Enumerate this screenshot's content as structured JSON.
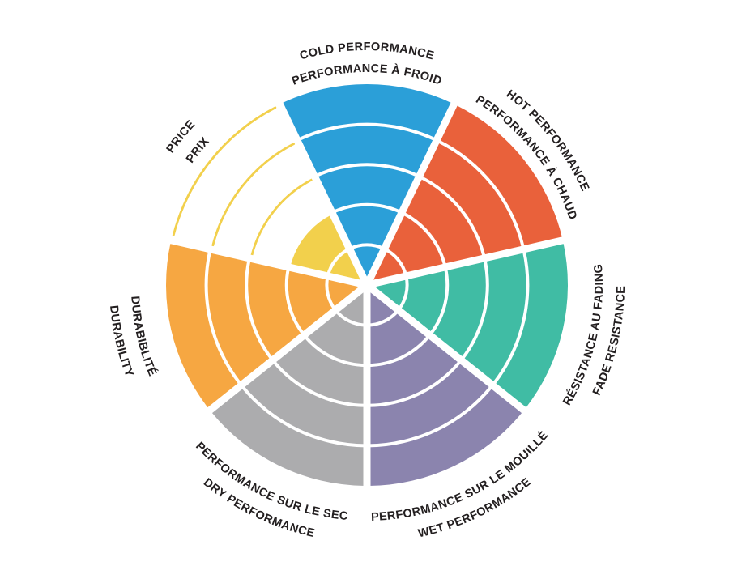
{
  "figure": {
    "background": "#FFFFFF",
    "label_text_color": "#231F20",
    "divider_color": "#FFFFFF"
  },
  "chart_data": {
    "type": "polar-sector-ratings",
    "description": "Circular tire performance rating wheel; 7 wedge sectors, each divided into 5 concentric rings; filled rings indicate rating out of 5; unfilled rings of the Price sector shown as thin outline arcs",
    "max_value": 5,
    "rings_total": 5,
    "legend_position": "none",
    "grid": "white ring gaps and white radial dividers",
    "sectors": [
      {
        "id": "cold",
        "label_en": "COLD PERFORMANCE",
        "label_fr": "PERFORMANCE À FROID",
        "value": 5,
        "color": "#2B9FD8",
        "label_style": "outside-top"
      },
      {
        "id": "hot",
        "label_en": "HOT PERFORMANCE",
        "label_fr": "PERFORMANCE À CHAUD",
        "value": 5,
        "color": "#E9613B",
        "label_style": "outside-top"
      },
      {
        "id": "fade",
        "label_en": "FADE RESISTANCE",
        "label_fr": "RÉSISTANCE AU FADING",
        "value": 5,
        "color": "#40BCA4",
        "label_style": "outside-bottom"
      },
      {
        "id": "wet",
        "label_en": "WET PERFORMANCE",
        "label_fr": "PERFORMANCE SUR LE MOUILLÉ",
        "value": 5,
        "color": "#8B84AE",
        "label_style": "outside-bottom"
      },
      {
        "id": "dry",
        "label_en": "DRY PERFORMANCE",
        "label_fr": "PERFORMANCE SUR LE SEC",
        "value": 5,
        "color": "#ACACAE",
        "label_style": "outside-bottom"
      },
      {
        "id": "durability",
        "label_en": "DURABILITY",
        "label_fr": "DURABIBLITÉ",
        "value": 5,
        "color": "#F6A742",
        "label_style": "outside-bottom"
      },
      {
        "id": "price",
        "label_en": "PRICE",
        "label_fr": "PRIX",
        "value": 2,
        "color": "#F2D04C",
        "label_style": "outside-top",
        "empty_rings_outlined": true
      }
    ]
  }
}
